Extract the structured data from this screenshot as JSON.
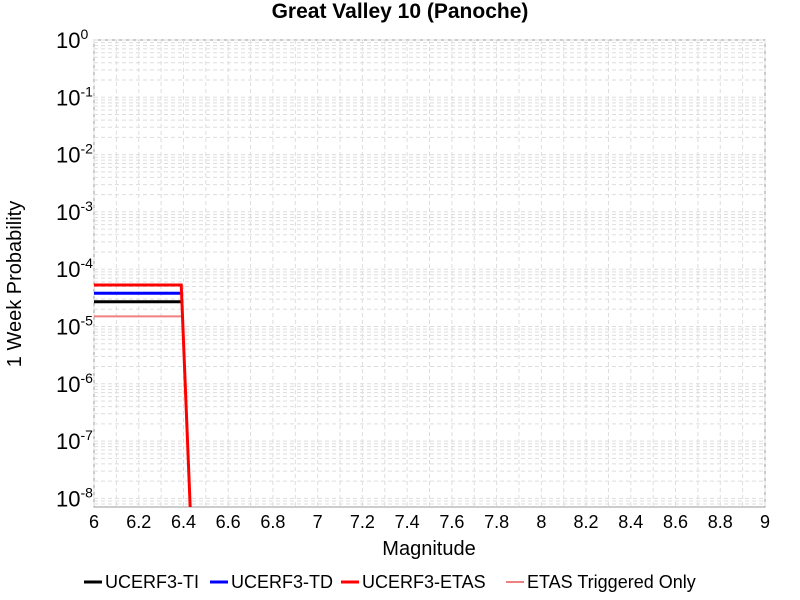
{
  "chart_data": {
    "type": "line",
    "title": "Great Valley 10 (Panoche)",
    "xlabel": "Magnitude",
    "ylabel": "1 Week Probability",
    "xlim": [
      6,
      9
    ],
    "ylim_log10": [
      -8.15,
      0
    ],
    "y_scale": "log",
    "grid": true,
    "legend_position": "bottom",
    "x_ticks": [
      "6",
      "6.2",
      "6.4",
      "6.6",
      "6.8",
      "7",
      "7.2",
      "7.4",
      "7.6",
      "7.8",
      "8",
      "8.2",
      "8.4",
      "8.6",
      "8.8",
      "9"
    ],
    "y_ticks": [
      {
        "base": "10",
        "exp": "0"
      },
      {
        "base": "10",
        "exp": "-1"
      },
      {
        "base": "10",
        "exp": "-2"
      },
      {
        "base": "10",
        "exp": "-3"
      },
      {
        "base": "10",
        "exp": "-4"
      },
      {
        "base": "10",
        "exp": "-5"
      },
      {
        "base": "10",
        "exp": "-6"
      },
      {
        "base": "10",
        "exp": "-7"
      },
      {
        "base": "10",
        "exp": "-8"
      }
    ],
    "series": [
      {
        "name": "UCERF3-TI",
        "color": "#000000",
        "x": [
          6.0,
          6.39
        ],
        "y": [
          2.7e-05,
          2.7e-05
        ]
      },
      {
        "name": "UCERF3-TD",
        "color": "#0000ff",
        "x": [
          6.0,
          6.39
        ],
        "y": [
          3.8e-05,
          3.8e-05
        ]
      },
      {
        "name": "ETAS Triggered Only",
        "color": "#f08080",
        "x": [
          6.0,
          6.39
        ],
        "y": [
          1.5e-05,
          1.5e-05
        ]
      },
      {
        "name": "UCERF3-ETAS",
        "color": "#ff0000",
        "x": [
          6.0,
          6.39,
          6.43
        ],
        "y": [
          5.3e-05,
          5.3e-05,
          7e-09
        ]
      }
    ],
    "legend": [
      {
        "name": "UCERF3-TI",
        "color": "#000000"
      },
      {
        "name": "UCERF3-TD",
        "color": "#0000ff"
      },
      {
        "name": "UCERF3-ETAS",
        "color": "#ff0000"
      },
      {
        "name": "ETAS Triggered Only",
        "color": "#f08080"
      }
    ]
  }
}
